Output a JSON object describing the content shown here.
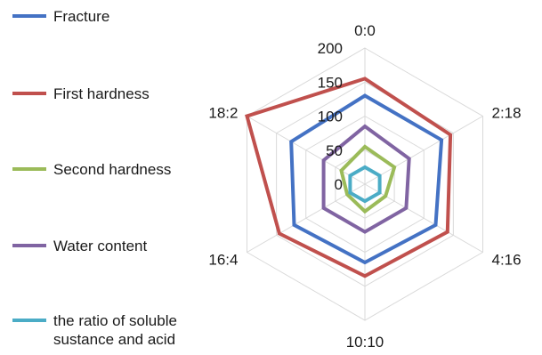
{
  "chart_data": {
    "type": "radar",
    "categories": [
      "0:0",
      "2:18",
      "4:16",
      "10:10",
      "16:4",
      "18:2"
    ],
    "r_ticks": [
      "0",
      "50",
      "100",
      "150",
      "200"
    ],
    "r_range": [
      0,
      200
    ],
    "grid": true,
    "legend_position": "left",
    "series": [
      {
        "name": "Fracture",
        "color": "#4472c4",
        "values": [
          130,
          130,
          120,
          115,
          120,
          125
        ]
      },
      {
        "name": "First hardness",
        "color": "#c0504d",
        "values": [
          155,
          145,
          140,
          135,
          145,
          200
        ]
      },
      {
        "name": "Second hardness",
        "color": "#9bbb59",
        "values": [
          55,
          50,
          35,
          40,
          30,
          40
        ]
      },
      {
        "name": "Water content",
        "color": "#8064a2",
        "values": [
          85,
          75,
          70,
          70,
          70,
          70
        ]
      },
      {
        "name": "the ratio of soluble sustance and acid",
        "color": "#4bacc6",
        "values": [
          25,
          25,
          25,
          25,
          25,
          25
        ]
      }
    ]
  }
}
